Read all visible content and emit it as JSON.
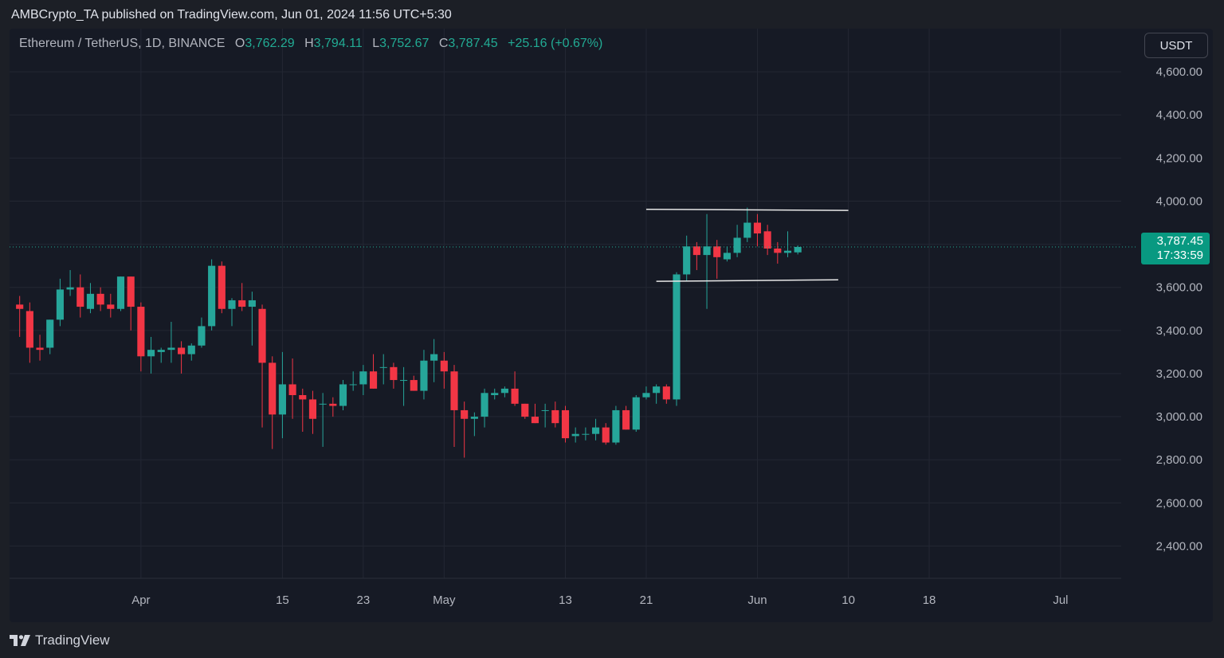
{
  "header": {
    "publish_line": "AMBCrypto_TA published on TradingView.com, Jun 01, 2024 11:56 UTC+5:30"
  },
  "symbol": {
    "name": "Ethereum / TetherUS, 1D, BINANCE",
    "open_label": "O",
    "open": "3,762.29",
    "high_label": "H",
    "high": "3,794.11",
    "low_label": "L",
    "low": "3,752.67",
    "close_label": "C",
    "close": "3,787.45",
    "change": "+25.16 (+0.67%)"
  },
  "currency_button": "USDT",
  "price_tag": {
    "price": "3,787.45",
    "countdown": "17:33:59"
  },
  "brand": {
    "name": "TradingView"
  },
  "colors": {
    "up": "#26a69a",
    "down": "#f23645",
    "background": "#161a25",
    "price_tag": "#089981"
  },
  "chart_data": {
    "type": "candlestick",
    "y_axis": {
      "range": [
        2250,
        4800
      ],
      "ticks": [
        2400,
        2600,
        2800,
        3000,
        3200,
        3400,
        3600,
        3800,
        4000,
        4200,
        4400,
        4600
      ],
      "tick_labels": [
        "2,400.00",
        "2,600.00",
        "2,800.00",
        "3,000.00",
        "3,200.00",
        "3,400.00",
        "3,600.00",
        "3,800.00",
        "4,000.00",
        "4,200.00",
        "4,400.00",
        "4,600.00"
      ]
    },
    "x_axis": {
      "range": [
        "2024-03-19",
        "2024-07-07"
      ],
      "ticks": [
        {
          "date": "2024-04-01",
          "label": "Apr"
        },
        {
          "date": "2024-04-15",
          "label": "15"
        },
        {
          "date": "2024-04-23",
          "label": "23"
        },
        {
          "date": "2024-05-01",
          "label": "May"
        },
        {
          "date": "2024-05-13",
          "label": "13"
        },
        {
          "date": "2024-05-21",
          "label": "21"
        },
        {
          "date": "2024-06-01",
          "label": "Jun"
        },
        {
          "date": "2024-06-10",
          "label": "10"
        },
        {
          "date": "2024-06-18",
          "label": "18"
        },
        {
          "date": "2024-07-01",
          "label": "Jul"
        }
      ]
    },
    "grid": true,
    "last_price": 3787.45,
    "candles": [
      {
        "date": "2024-03-20",
        "o": 3520,
        "h": 3560,
        "l": 3370,
        "c": 3500
      },
      {
        "date": "2024-03-21",
        "o": 3490,
        "h": 3530,
        "l": 3250,
        "c": 3320
      },
      {
        "date": "2024-03-22",
        "o": 3320,
        "h": 3380,
        "l": 3260,
        "c": 3310
      },
      {
        "date": "2024-03-23",
        "o": 3320,
        "h": 3450,
        "l": 3290,
        "c": 3450
      },
      {
        "date": "2024-03-24",
        "o": 3450,
        "h": 3640,
        "l": 3420,
        "c": 3590
      },
      {
        "date": "2024-03-25",
        "o": 3590,
        "h": 3680,
        "l": 3560,
        "c": 3600
      },
      {
        "date": "2024-03-26",
        "o": 3600,
        "h": 3660,
        "l": 3460,
        "c": 3510
      },
      {
        "date": "2024-03-27",
        "o": 3500,
        "h": 3620,
        "l": 3480,
        "c": 3570
      },
      {
        "date": "2024-03-28",
        "o": 3570,
        "h": 3600,
        "l": 3490,
        "c": 3520
      },
      {
        "date": "2024-03-29",
        "o": 3520,
        "h": 3570,
        "l": 3460,
        "c": 3500
      },
      {
        "date": "2024-03-30",
        "o": 3500,
        "h": 3650,
        "l": 3490,
        "c": 3650
      },
      {
        "date": "2024-03-31",
        "o": 3650,
        "h": 3650,
        "l": 3400,
        "c": 3510
      },
      {
        "date": "2024-04-01",
        "o": 3510,
        "h": 3530,
        "l": 3210,
        "c": 3280
      },
      {
        "date": "2024-04-02",
        "o": 3280,
        "h": 3370,
        "l": 3200,
        "c": 3310
      },
      {
        "date": "2024-04-03",
        "o": 3300,
        "h": 3320,
        "l": 3250,
        "c": 3310
      },
      {
        "date": "2024-04-04",
        "o": 3310,
        "h": 3440,
        "l": 3250,
        "c": 3320
      },
      {
        "date": "2024-04-05",
        "o": 3320,
        "h": 3350,
        "l": 3200,
        "c": 3290
      },
      {
        "date": "2024-04-06",
        "o": 3290,
        "h": 3340,
        "l": 3260,
        "c": 3330
      },
      {
        "date": "2024-04-07",
        "o": 3330,
        "h": 3460,
        "l": 3320,
        "c": 3420
      },
      {
        "date": "2024-04-08",
        "o": 3420,
        "h": 3730,
        "l": 3400,
        "c": 3700
      },
      {
        "date": "2024-04-09",
        "o": 3700,
        "h": 3720,
        "l": 3480,
        "c": 3500
      },
      {
        "date": "2024-04-10",
        "o": 3500,
        "h": 3550,
        "l": 3420,
        "c": 3540
      },
      {
        "date": "2024-04-11",
        "o": 3540,
        "h": 3620,
        "l": 3490,
        "c": 3510
      },
      {
        "date": "2024-04-12",
        "o": 3510,
        "h": 3580,
        "l": 3330,
        "c": 3540
      },
      {
        "date": "2024-04-13",
        "o": 3500,
        "h": 3520,
        "l": 2950,
        "c": 3250
      },
      {
        "date": "2024-04-14",
        "o": 3250,
        "h": 3280,
        "l": 2850,
        "c": 3010
      },
      {
        "date": "2024-04-15",
        "o": 3010,
        "h": 3300,
        "l": 2900,
        "c": 3150
      },
      {
        "date": "2024-04-16",
        "o": 3150,
        "h": 3270,
        "l": 2990,
        "c": 3100
      },
      {
        "date": "2024-04-17",
        "o": 3100,
        "h": 3130,
        "l": 2930,
        "c": 3080
      },
      {
        "date": "2024-04-18",
        "o": 3080,
        "h": 3120,
        "l": 2920,
        "c": 2990
      },
      {
        "date": "2024-04-19",
        "o": 3060,
        "h": 3110,
        "l": 2860,
        "c": 3060
      },
      {
        "date": "2024-04-20",
        "o": 3060,
        "h": 3090,
        "l": 3000,
        "c": 3050
      },
      {
        "date": "2024-04-21",
        "o": 3050,
        "h": 3170,
        "l": 3030,
        "c": 3150
      },
      {
        "date": "2024-04-22",
        "o": 3150,
        "h": 3210,
        "l": 3120,
        "c": 3150
      },
      {
        "date": "2024-04-23",
        "o": 3150,
        "h": 3240,
        "l": 3100,
        "c": 3210
      },
      {
        "date": "2024-04-24",
        "o": 3210,
        "h": 3290,
        "l": 3130,
        "c": 3130
      },
      {
        "date": "2024-04-25",
        "o": 3230,
        "h": 3290,
        "l": 3150,
        "c": 3230
      },
      {
        "date": "2024-04-26",
        "o": 3230,
        "h": 3250,
        "l": 3130,
        "c": 3170
      },
      {
        "date": "2024-04-27",
        "o": 3170,
        "h": 3230,
        "l": 3050,
        "c": 3170
      },
      {
        "date": "2024-04-28",
        "o": 3170,
        "h": 3190,
        "l": 3120,
        "c": 3120
      },
      {
        "date": "2024-04-29",
        "o": 3120,
        "h": 3310,
        "l": 3080,
        "c": 3260
      },
      {
        "date": "2024-04-30",
        "o": 3260,
        "h": 3360,
        "l": 3160,
        "c": 3290
      },
      {
        "date": "2024-05-01",
        "o": 3260,
        "h": 3300,
        "l": 3130,
        "c": 3210
      },
      {
        "date": "2024-05-02",
        "o": 3210,
        "h": 3240,
        "l": 2860,
        "c": 3030
      },
      {
        "date": "2024-05-03",
        "o": 3030,
        "h": 3070,
        "l": 2810,
        "c": 2990
      },
      {
        "date": "2024-05-04",
        "o": 2990,
        "h": 3020,
        "l": 2910,
        "c": 3000
      },
      {
        "date": "2024-05-05",
        "o": 3000,
        "h": 3130,
        "l": 2950,
        "c": 3110
      },
      {
        "date": "2024-05-06",
        "o": 3100,
        "h": 3130,
        "l": 3080,
        "c": 3110
      },
      {
        "date": "2024-05-07",
        "o": 3110,
        "h": 3140,
        "l": 3090,
        "c": 3130
      },
      {
        "date": "2024-05-08",
        "o": 3130,
        "h": 3210,
        "l": 3050,
        "c": 3060
      },
      {
        "date": "2024-05-09",
        "o": 3060,
        "h": 3060,
        "l": 2990,
        "c": 3000
      },
      {
        "date": "2024-05-10",
        "o": 3000,
        "h": 3060,
        "l": 2970,
        "c": 2970
      },
      {
        "date": "2024-05-11",
        "o": 3030,
        "h": 3060,
        "l": 2950,
        "c": 3030
      },
      {
        "date": "2024-05-12",
        "o": 3030,
        "h": 3070,
        "l": 2950,
        "c": 2970
      },
      {
        "date": "2024-05-13",
        "o": 3030,
        "h": 3050,
        "l": 2880,
        "c": 2900
      },
      {
        "date": "2024-05-14",
        "o": 2910,
        "h": 2950,
        "l": 2880,
        "c": 2920
      },
      {
        "date": "2024-05-15",
        "o": 2920,
        "h": 2950,
        "l": 2890,
        "c": 2920
      },
      {
        "date": "2024-05-16",
        "o": 2920,
        "h": 2990,
        "l": 2890,
        "c": 2950
      },
      {
        "date": "2024-05-17",
        "o": 2950,
        "h": 2970,
        "l": 2870,
        "c": 2880
      },
      {
        "date": "2024-05-18",
        "o": 2880,
        "h": 3050,
        "l": 2870,
        "c": 3030
      },
      {
        "date": "2024-05-19",
        "o": 3030,
        "h": 3050,
        "l": 2940,
        "c": 2940
      },
      {
        "date": "2024-05-20",
        "o": 2940,
        "h": 3100,
        "l": 2930,
        "c": 3090
      },
      {
        "date": "2024-05-21",
        "o": 3090,
        "h": 3140,
        "l": 3080,
        "c": 3110
      },
      {
        "date": "2024-05-22",
        "o": 3110,
        "h": 3150,
        "l": 3060,
        "c": 3140
      },
      {
        "date": "2024-05-23",
        "o": 3140,
        "h": 3150,
        "l": 3060,
        "c": 3080
      },
      {
        "date": "2024-05-24",
        "o": 3080,
        "h": 3670,
        "l": 3050,
        "c": 3660
      },
      {
        "date": "2024-05-25",
        "o": 3660,
        "h": 3840,
        "l": 3630,
        "c": 3790
      },
      {
        "date": "2024-05-26",
        "o": 3790,
        "h": 3810,
        "l": 3680,
        "c": 3750
      },
      {
        "date": "2024-05-27",
        "o": 3750,
        "h": 3940,
        "l": 3500,
        "c": 3790
      },
      {
        "date": "2024-05-28",
        "o": 3790,
        "h": 3820,
        "l": 3640,
        "c": 3740
      },
      {
        "date": "2024-05-29",
        "o": 3730,
        "h": 3790,
        "l": 3720,
        "c": 3760
      },
      {
        "date": "2024-05-30",
        "o": 3760,
        "h": 3890,
        "l": 3740,
        "c": 3830
      },
      {
        "date": "2024-05-31",
        "o": 3830,
        "h": 3970,
        "l": 3810,
        "c": 3900
      },
      {
        "date": "2024-06-01",
        "o": 3900,
        "h": 3940,
        "l": 3790,
        "c": 3850
      },
      {
        "date": "2024-06-02",
        "o": 3860,
        "h": 3890,
        "l": 3750,
        "c": 3780
      },
      {
        "date": "2024-06-03",
        "o": 3780,
        "h": 3810,
        "l": 3710,
        "c": 3760
      },
      {
        "date": "2024-06-04",
        "o": 3760,
        "h": 3860,
        "l": 3740,
        "c": 3770
      },
      {
        "date": "2024-06-05",
        "o": 3762.29,
        "h": 3794.11,
        "l": 3752.67,
        "c": 3787.45
      }
    ],
    "annotations": [
      {
        "type": "trendline",
        "from": {
          "date": "2024-05-21",
          "price": 3962
        },
        "to": {
          "date": "2024-06-10",
          "price": 3957
        }
      },
      {
        "type": "trendline",
        "from": {
          "date": "2024-05-22",
          "price": 3628
        },
        "to": {
          "date": "2024-06-09",
          "price": 3635
        }
      }
    ]
  }
}
